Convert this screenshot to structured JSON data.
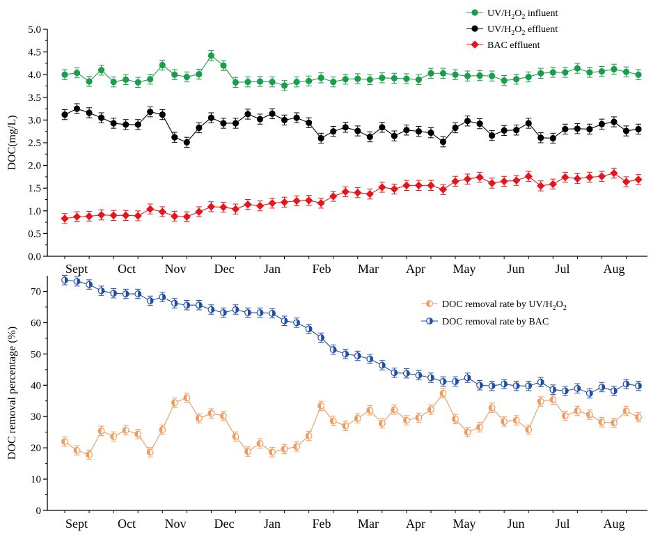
{
  "chart_data": [
    {
      "type": "line",
      "title": "",
      "xlabel": "",
      "ylabel": "DOC(mg/L)",
      "ylim": [
        0,
        5
      ],
      "yticks": [
        "0.0",
        "0.5",
        "1.0",
        "1.5",
        "2.0",
        "2.5",
        "3.0",
        "3.5",
        "4.0",
        "4.5",
        "5.0"
      ],
      "months": [
        "Sept",
        "Oct",
        "Nov",
        "Dec",
        "Jan",
        "Feb",
        "Mar",
        "Apr",
        "May",
        "Jun",
        "Jul",
        "Aug"
      ],
      "legend_position": "top-right",
      "series": [
        {
          "name": "UV/H2O2 influent",
          "legend": {
            "pre": "UV/H",
            "sub1": "2",
            "mid": "O",
            "sub2": "2",
            "post": " influent"
          },
          "color": "#1a9e4a",
          "marker": "circle",
          "values": [
            4.0,
            4.04,
            3.85,
            4.1,
            3.84,
            3.89,
            3.83,
            3.9,
            4.21,
            4.0,
            3.95,
            4.01,
            4.42,
            4.2,
            3.83,
            3.84,
            3.85,
            3.84,
            3.76,
            3.84,
            3.86,
            3.93,
            3.84,
            3.9,
            3.91,
            3.89,
            3.93,
            3.92,
            3.91,
            3.89,
            4.03,
            4.03,
            4.0,
            3.97,
            3.98,
            3.97,
            3.87,
            3.9,
            3.95,
            4.03,
            4.05,
            4.05,
            4.14,
            4.05,
            4.07,
            4.12,
            4.06,
            4.0
          ]
        },
        {
          "name": "UV/H2O2 effluent",
          "legend": {
            "pre": "UV/H",
            "sub1": "2",
            "mid": "O",
            "sub2": "2",
            "post": " effluent"
          },
          "color": "#000000",
          "marker": "circle",
          "values": [
            3.12,
            3.25,
            3.16,
            3.05,
            2.93,
            2.9,
            2.9,
            3.18,
            3.12,
            2.62,
            2.51,
            2.83,
            3.05,
            2.93,
            2.93,
            3.13,
            3.02,
            3.14,
            3.0,
            3.05,
            2.94,
            2.6,
            2.75,
            2.84,
            2.76,
            2.63,
            2.84,
            2.65,
            2.78,
            2.75,
            2.72,
            2.52,
            2.83,
            2.98,
            2.92,
            2.66,
            2.77,
            2.78,
            2.93,
            2.61,
            2.6,
            2.8,
            2.81,
            2.8,
            2.91,
            2.96,
            2.76,
            2.8
          ]
        },
        {
          "name": "BAC effluent",
          "legend": {
            "pre": "BAC effluent",
            "sub1": "",
            "mid": "",
            "sub2": "",
            "post": ""
          },
          "color": "#e8141b",
          "marker": "diamond",
          "values": [
            0.83,
            0.87,
            0.88,
            0.91,
            0.9,
            0.9,
            0.89,
            1.04,
            0.98,
            0.88,
            0.87,
            0.98,
            1.09,
            1.08,
            1.04,
            1.14,
            1.11,
            1.17,
            1.19,
            1.22,
            1.23,
            1.17,
            1.32,
            1.42,
            1.4,
            1.37,
            1.52,
            1.48,
            1.56,
            1.56,
            1.56,
            1.47,
            1.65,
            1.7,
            1.74,
            1.61,
            1.65,
            1.67,
            1.76,
            1.55,
            1.59,
            1.74,
            1.71,
            1.74,
            1.76,
            1.83,
            1.64,
            1.69
          ]
        }
      ]
    },
    {
      "type": "line",
      "title": "",
      "xlabel": "",
      "ylabel": "DOC removal percentage (%)",
      "ylim": [
        0,
        75
      ],
      "yticks": [
        "0",
        "10",
        "20",
        "30",
        "40",
        "50",
        "60",
        "70"
      ],
      "months": [
        "Sept",
        "Oct",
        "Nov",
        "Dec",
        "Jan",
        "Feb",
        "Mar",
        "Apr",
        "May",
        "Jun",
        "Jul",
        "Aug"
      ],
      "legend_position": "top-right",
      "series": [
        {
          "name": "DOC removal rate by UV/H2O2",
          "legend": {
            "pre": "DOC removal rate by UV/H",
            "sub1": "2",
            "mid": "O",
            "sub2": "2",
            "post": ""
          },
          "color": "#f39a5c",
          "marker": "half-left",
          "values": [
            22,
            19.2,
            17.8,
            25.4,
            23.6,
            25.6,
            24.4,
            18.6,
            25.8,
            34.4,
            36,
            29.4,
            31,
            30.2,
            23.6,
            18.8,
            21.4,
            18.6,
            19.6,
            20.4,
            23.8,
            33.4,
            28.6,
            27,
            29.4,
            32,
            27.8,
            32.2,
            28.8,
            29.6,
            32.2,
            37.4,
            29.2,
            25,
            26.6,
            32.8,
            28.4,
            28.8,
            25.8,
            34.8,
            35.4,
            30.2,
            31.8,
            30.6,
            28.2,
            28,
            31.8,
            29.8
          ]
        },
        {
          "name": "DOC removal rate by BAC",
          "legend": {
            "pre": "DOC removal rate by BAC",
            "sub1": "",
            "mid": "",
            "sub2": "",
            "post": ""
          },
          "color": "#1f4fa6",
          "marker": "half-right",
          "values": [
            73.6,
            73.2,
            72.2,
            70.2,
            69.4,
            69.2,
            69.2,
            67,
            68.2,
            66.2,
            65.6,
            65.6,
            64.2,
            63.2,
            64.2,
            63.2,
            63.2,
            63,
            60.6,
            60,
            58,
            55.2,
            51.4,
            50,
            49.4,
            48.4,
            46.4,
            44,
            43.8,
            43.2,
            42.4,
            41.2,
            41.2,
            42.4,
            40,
            39.8,
            40.4,
            39.8,
            39.8,
            41,
            38.6,
            38.2,
            39,
            37.4,
            39.4,
            38.2,
            40.4,
            39.8
          ]
        }
      ]
    }
  ]
}
